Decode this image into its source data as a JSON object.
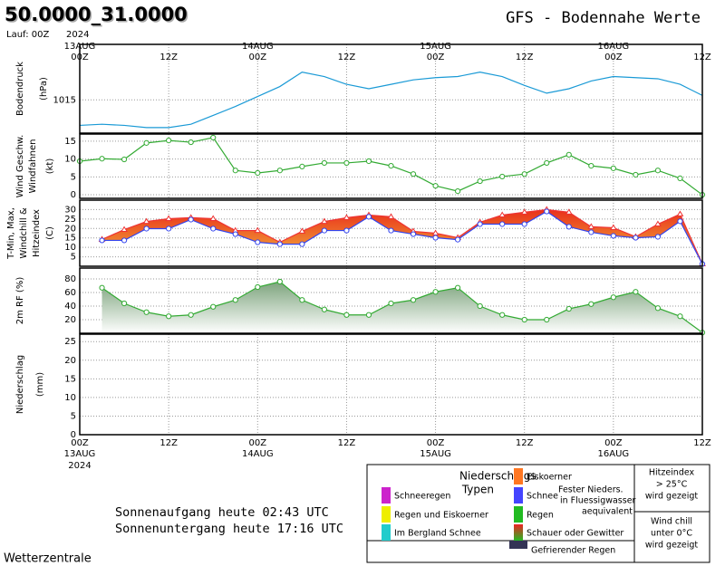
{
  "header": {
    "title": "50.0000_31.0000",
    "run": "Lauf: 00Z",
    "year": "2024",
    "subtitle": "GFS - Bodennahe Werte"
  },
  "time_axis": {
    "xlim": [
      0,
      84
    ],
    "xticks": [
      {
        "value": 0,
        "label": "00Z"
      },
      {
        "value": 12,
        "label": "12Z"
      },
      {
        "value": 24,
        "label": "00Z"
      },
      {
        "value": 36,
        "label": "12Z"
      },
      {
        "value": 48,
        "label": "00Z"
      },
      {
        "value": 60,
        "label": "12Z"
      },
      {
        "value": 72,
        "label": "00Z"
      },
      {
        "value": 84,
        "label": "12Z"
      }
    ],
    "dates": [
      {
        "value": 0,
        "label": "13AUG"
      },
      {
        "value": 24,
        "label": "14AUG"
      },
      {
        "value": 48,
        "label": "15AUG"
      },
      {
        "value": 72,
        "label": "16AUG"
      }
    ],
    "year": "2024"
  },
  "chart_data": [
    {
      "type": "line",
      "ylabel": [
        {
          "text": "Bodendruck",
          "color": "#000000"
        },
        {
          "text": "(hPa)",
          "color": "#000000"
        }
      ],
      "ylim": [
        1012,
        1020
      ],
      "yticks": [
        1015
      ],
      "grid": true,
      "x": [
        0,
        3,
        6,
        9,
        12,
        15,
        18,
        21,
        24,
        27,
        30,
        33,
        36,
        39,
        42,
        45,
        48,
        51,
        54,
        57,
        60,
        63,
        66,
        69,
        72,
        75,
        78,
        81,
        84
      ],
      "series": [
        {
          "color": "#1a9ad6",
          "marker": "none",
          "values": [
            1012.7,
            1012.8,
            1012.7,
            1012.5,
            1012.5,
            1012.8,
            1013.6,
            1014.4,
            1015.3,
            1016.2,
            1017.5,
            1017.1,
            1016.4,
            1016.0,
            1016.4,
            1016.8,
            1017.0,
            1017.1,
            1017.5,
            1017.1,
            1016.3,
            1015.6,
            1016.0,
            1016.7,
            1017.1,
            1017.0,
            1016.9,
            1016.4,
            1015.4
          ]
        }
      ]
    },
    {
      "type": "line",
      "ylabel": [
        {
          "text": "Wind Geschw.",
          "color": "#22aa22"
        },
        {
          "text": "Windfahnen",
          "color": "#000000"
        },
        {
          "text": "(kt)",
          "color": "#000000"
        }
      ],
      "ylim": [
        -1,
        17
      ],
      "yticks": [
        0,
        5,
        10,
        15
      ],
      "grid": true,
      "x": [
        0,
        3,
        6,
        9,
        12,
        15,
        18,
        21,
        24,
        27,
        30,
        33,
        36,
        39,
        42,
        45,
        48,
        51,
        54,
        57,
        60,
        63,
        66,
        69,
        72,
        75,
        78,
        81,
        84
      ],
      "series": [
        {
          "color": "#33aa33",
          "marker": "circle",
          "values": [
            9.4,
            10.1,
            9.9,
            14.5,
            15.2,
            14.7,
            16.0,
            6.8,
            6.1,
            6.8,
            7.9,
            8.9,
            8.9,
            9.4,
            8.1,
            5.8,
            2.5,
            1.0,
            3.8,
            5.1,
            5.8,
            8.9,
            11.2,
            8.1,
            7.4,
            5.6,
            6.8,
            4.6,
            0
          ]
        }
      ]
    },
    {
      "type": "line",
      "fill": "between",
      "ylabel": [
        {
          "text": "T-Min, Max,",
          "color": "#ee2222"
        },
        {
          "text": "Windchill &",
          "color": "#8844dd"
        },
        {
          "text": "Hitzeindex",
          "color": "#ee8833"
        },
        {
          "text": "(C)",
          "color": "#000000"
        }
      ],
      "ylim": [
        0,
        35
      ],
      "yticks": [
        5,
        10,
        15,
        20,
        25,
        30
      ],
      "grid": true,
      "x": [
        3,
        6,
        9,
        12,
        15,
        18,
        21,
        24,
        27,
        30,
        33,
        36,
        39,
        42,
        45,
        48,
        51,
        54,
        57,
        60,
        63,
        66,
        69,
        72,
        75,
        78,
        81,
        84
      ],
      "series": [
        {
          "color": "#ee3333",
          "marker": "triangle",
          "values": [
            14.2,
            19.4,
            23.7,
            25.2,
            25.7,
            25.2,
            18.9,
            18.9,
            12.7,
            18.5,
            23.7,
            25.7,
            27.1,
            26.2,
            18.5,
            17.5,
            15.1,
            23.3,
            27.1,
            28.6,
            30.0,
            28.6,
            20.9,
            20.4,
            15.6,
            22.3,
            27.6,
            1.2
          ]
        },
        {
          "color": "#3344ee",
          "marker": "circle",
          "values": [
            13.7,
            13.7,
            19.9,
            19.9,
            24.7,
            19.9,
            17.0,
            12.7,
            11.7,
            11.7,
            18.9,
            18.9,
            26.2,
            18.9,
            17.0,
            15.1,
            14.1,
            22.3,
            22.3,
            22.3,
            29.0,
            20.9,
            18.0,
            16.1,
            15.1,
            15.6,
            23.8,
            1.2
          ]
        }
      ]
    },
    {
      "type": "line",
      "fill": "below",
      "ylabel": [
        {
          "text": "2m RF (%)",
          "color": "#22aa22"
        }
      ],
      "ylim": [
        0,
        96
      ],
      "yticks": [
        20,
        40,
        60,
        80
      ],
      "grid": true,
      "x": [
        3,
        6,
        9,
        12,
        15,
        18,
        21,
        24,
        27,
        30,
        33,
        36,
        39,
        42,
        45,
        48,
        51,
        54,
        57,
        60,
        63,
        66,
        69,
        72,
        75,
        78,
        81,
        84
      ],
      "series": [
        {
          "color": "#33aa33",
          "marker": "circle",
          "values": [
            67,
            44,
            31,
            25,
            27,
            39,
            49,
            68,
            76,
            49,
            35,
            27,
            27,
            44,
            49,
            61,
            67,
            40,
            27,
            20,
            20,
            36,
            43,
            53,
            61,
            37,
            25,
            1
          ]
        }
      ]
    },
    {
      "type": "bar",
      "ylabel": [
        {
          "text": "Niederschlag",
          "color": "#000000"
        },
        {
          "text": "(mm)",
          "color": "#000000"
        }
      ],
      "ylim": [
        0,
        27
      ],
      "yticks": [
        0,
        5,
        10,
        15,
        20,
        25
      ],
      "grid": true
    }
  ],
  "legend": {
    "title": [
      "Niederschlags",
      "Typen"
    ],
    "items": [
      {
        "label": "Schneeregen",
        "color": "#cc22cc",
        "text_color": "#cc22cc"
      },
      {
        "label": "Regen und Eiskoerner",
        "color": "#eeee00",
        "text_color": "#c8c800"
      },
      {
        "label": "Im Bergland Schnee",
        "color": "#22cccc",
        "text_color": "#22bbcc"
      },
      {
        "label": "Eiskoerner",
        "color": "#ff7722",
        "text_color": "#ff6611"
      },
      {
        "label": "Schnee",
        "color": "#4444ff",
        "text_color": "#3333ee"
      },
      {
        "label": "Regen",
        "color": "#22bb22",
        "text_color": "#22aa22"
      },
      {
        "label": "Schauer oder Gewitter",
        "color": "#ee2222",
        "text_color": "#ee2222"
      },
      {
        "label": "Gefrierender Regen",
        "color": "#333355",
        "text_color": "#000000"
      }
    ],
    "note": [
      "Fester Nieders.",
      "in Fluessigwasser",
      "aequivalent"
    ],
    "heat_note": [
      "Hitzeindex",
      "> 25°C",
      "wird gezeigt"
    ],
    "chill_note": [
      "Wind chill",
      "unter 0°C",
      "wird gezeigt"
    ]
  },
  "sun": [
    "Sonnenaufgang heute 02:43 UTC",
    "Sonnenuntergang heute 17:16 UTC"
  ],
  "footer": "Wetterzentrale"
}
